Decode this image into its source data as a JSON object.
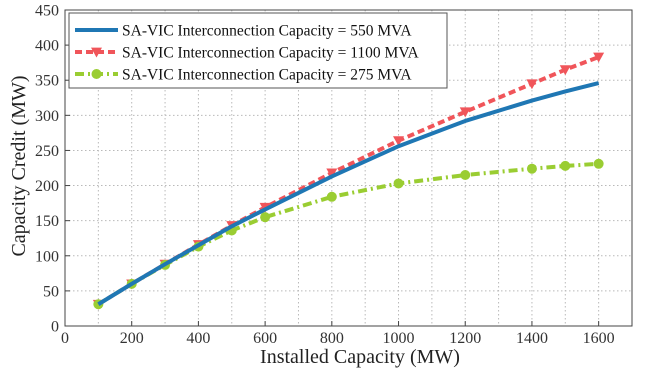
{
  "chart_data": {
    "type": "line",
    "xlabel": "Installed Capacity (MW)",
    "ylabel": "Capacity Credit (MW)",
    "xlim": [
      0,
      1700
    ],
    "ylim": [
      0,
      450
    ],
    "xticks": [
      0,
      200,
      400,
      600,
      800,
      1000,
      1200,
      1400,
      1600
    ],
    "yticks": [
      0,
      50,
      100,
      150,
      200,
      250,
      300,
      350,
      400,
      450
    ],
    "grid": true,
    "legend_position": "top-left",
    "series": [
      {
        "name": "SA-VIC Interconnection Capacity = 550 MVA",
        "color": "#1f77b4",
        "line_style": "solid",
        "marker": "none",
        "x": [
          100,
          200,
          300,
          400,
          500,
          600,
          800,
          1000,
          1200,
          1400,
          1500,
          1600
        ],
        "y": [
          31,
          60,
          88,
          115,
          142,
          166,
          213,
          256,
          292,
          321,
          334,
          346
        ]
      },
      {
        "name": "SA-VIC Interconnection Capacity = 1100 MVA",
        "color": "#f0555a",
        "line_style": "dashed",
        "marker": "triangle-down",
        "x": [
          100,
          200,
          300,
          400,
          500,
          600,
          800,
          1000,
          1200,
          1400,
          1500,
          1600
        ],
        "y": [
          31,
          60,
          88,
          116,
          143,
          169,
          218,
          264,
          305,
          345,
          365,
          383
        ]
      },
      {
        "name": "SA-VIC Interconnection Capacity = 275 MVA",
        "color": "#9acd32",
        "line_style": "dash-dot",
        "marker": "circle",
        "x": [
          100,
          200,
          300,
          400,
          500,
          600,
          800,
          1000,
          1200,
          1400,
          1500,
          1600
        ],
        "y": [
          31,
          60,
          87,
          113,
          136,
          155,
          184,
          203,
          215,
          224,
          228,
          231
        ]
      }
    ]
  }
}
